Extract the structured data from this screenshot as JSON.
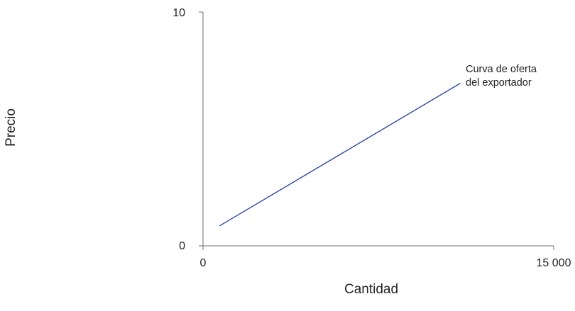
{
  "chart_data": {
    "type": "line",
    "title": "",
    "xlabel": "Cantidad",
    "ylabel": "Precio",
    "xlim": [
      0,
      15000
    ],
    "ylim": [
      0,
      10
    ],
    "xticks": [
      {
        "value": 0,
        "label": "0"
      },
      {
        "value": 15000,
        "label": "15 000"
      }
    ],
    "yticks": [
      {
        "value": 0,
        "label": "0"
      },
      {
        "value": 10,
        "label": "10"
      }
    ],
    "grid": false,
    "legend": "none",
    "series": [
      {
        "name": "Curva de oferta del exportador",
        "label_lines": [
          "Curva de oferta",
          "del exportador"
        ],
        "color": "#2f47a3",
        "x": [
          700,
          11000
        ],
        "y": [
          0.85,
          6.95
        ]
      }
    ]
  }
}
